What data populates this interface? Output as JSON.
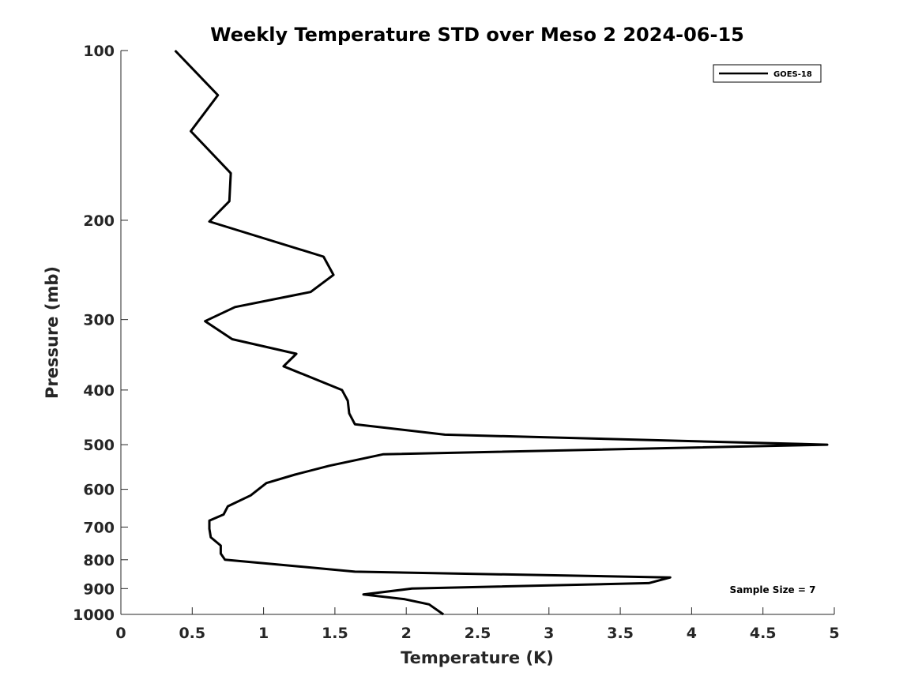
{
  "chart_data": {
    "type": "line",
    "title": "Weekly Temperature STD over Meso 2 2024-06-15",
    "xlabel": "Temperature (K)",
    "ylabel": "Pressure (mb)",
    "xlim": [
      0,
      5
    ],
    "ylim": [
      100,
      1000
    ],
    "y_scale": "log",
    "y_reversed": true,
    "x_ticks": [
      0,
      0.5,
      1,
      1.5,
      2,
      2.5,
      3,
      3.5,
      4,
      4.5,
      5
    ],
    "x_tick_labels": [
      "0",
      "0.5",
      "1",
      "1.5",
      "2",
      "2.5",
      "3",
      "3.5",
      "4",
      "4.5",
      "5"
    ],
    "y_ticks": [
      100,
      200,
      300,
      400,
      500,
      600,
      700,
      800,
      900,
      1000
    ],
    "y_tick_labels": [
      "100",
      "200",
      "300",
      "400",
      "500",
      "600",
      "700",
      "800",
      "900",
      "1000"
    ],
    "legend_position": "top-right",
    "grid": false,
    "annotation": "Sample Size = 7",
    "series": [
      {
        "name": "GOES-18",
        "color": "#000000",
        "points": [
          [
            0.38,
            100
          ],
          [
            0.68,
            120
          ],
          [
            0.49,
            139
          ],
          [
            0.77,
            165
          ],
          [
            0.76,
            185
          ],
          [
            0.62,
            201
          ],
          [
            1.42,
            232
          ],
          [
            1.49,
            250
          ],
          [
            1.33,
            268
          ],
          [
            0.8,
            285
          ],
          [
            0.59,
            302
          ],
          [
            0.78,
            325
          ],
          [
            1.23,
            345
          ],
          [
            1.14,
            363
          ],
          [
            1.55,
            400
          ],
          [
            1.59,
            418
          ],
          [
            1.6,
            440
          ],
          [
            1.64,
            460
          ],
          [
            2.27,
            480
          ],
          [
            4.95,
            500
          ],
          [
            1.84,
            520
          ],
          [
            1.46,
            545
          ],
          [
            1.22,
            565
          ],
          [
            1.02,
            585
          ],
          [
            0.91,
            615
          ],
          [
            0.75,
            643
          ],
          [
            0.72,
            665
          ],
          [
            0.62,
            682
          ],
          [
            0.62,
            705
          ],
          [
            0.63,
            730
          ],
          [
            0.7,
            755
          ],
          [
            0.7,
            780
          ],
          [
            0.73,
            800
          ],
          [
            1.2,
            820
          ],
          [
            1.64,
            840
          ],
          [
            3.85,
            860
          ],
          [
            3.7,
            880
          ],
          [
            2.04,
            900
          ],
          [
            1.7,
            922
          ],
          [
            1.99,
            940
          ],
          [
            2.16,
            960
          ],
          [
            2.26,
            1000
          ]
        ]
      }
    ]
  }
}
